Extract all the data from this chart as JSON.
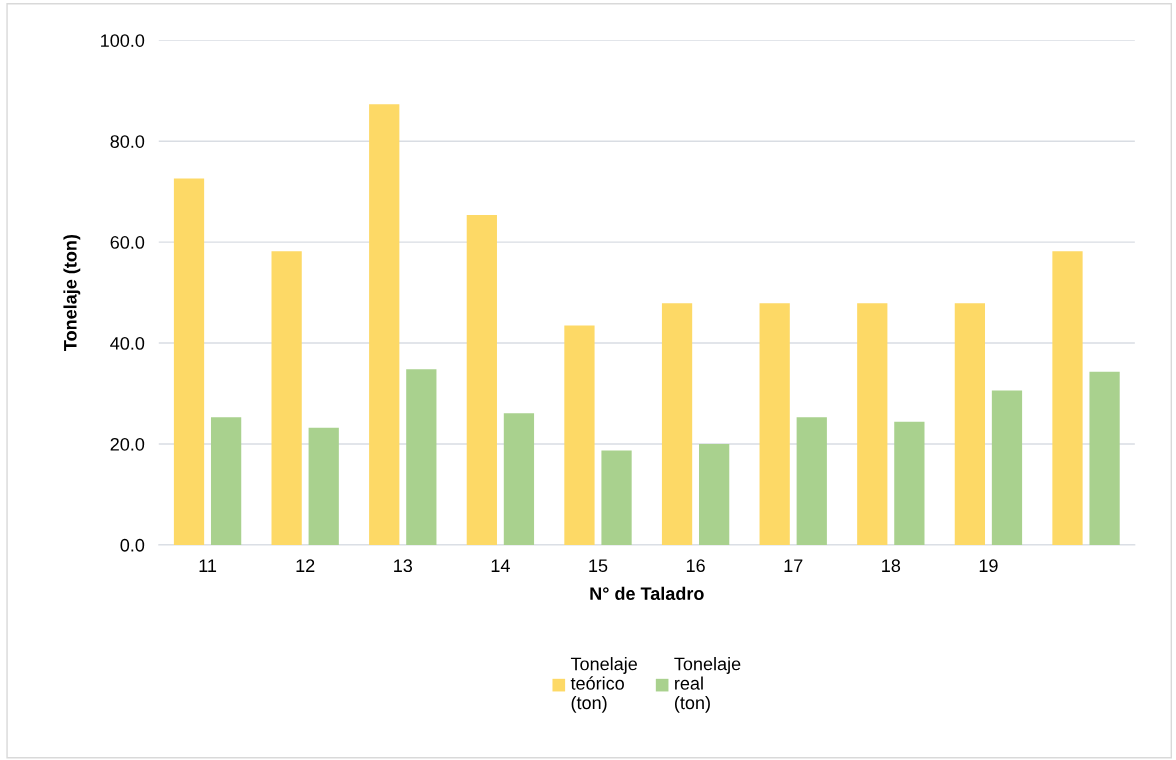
{
  "chart_data": {
    "type": "bar",
    "xlabel": "N° de Taladro",
    "ylabel": "Tonelaje (ton)",
    "categories": [
      "11",
      "12",
      "13",
      "14",
      "15",
      "16",
      "17",
      "18",
      "19",
      null
    ],
    "series": [
      {
        "name": "Tonelaje teórico (ton)",
        "color": "#fdd966",
        "values": [
          72.6,
          58.2,
          87.3,
          65.4,
          43.5,
          47.9,
          47.9,
          47.9,
          47.9,
          58.2
        ]
      },
      {
        "name": "Tonelaje real (ton)",
        "color": "#a9d18e",
        "values": [
          25.3,
          23.2,
          34.8,
          26.1,
          18.7,
          20.0,
          25.3,
          24.4,
          30.6,
          34.3
        ]
      }
    ],
    "ylim": [
      0,
      100
    ],
    "yticks": [
      {
        "value": 0,
        "label": "0.0"
      },
      {
        "value": 20,
        "label": "20.0"
      },
      {
        "value": 40,
        "label": "40.0"
      },
      {
        "value": 60,
        "label": "60.0"
      },
      {
        "value": 80,
        "label": "80.0"
      },
      {
        "value": 100,
        "label": "100.0"
      }
    ],
    "grid": "y",
    "legend": "bottom"
  }
}
